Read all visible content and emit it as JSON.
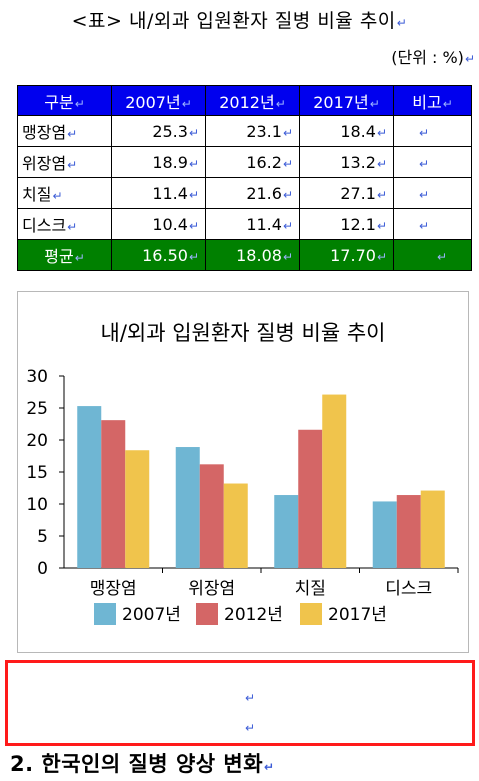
{
  "caption": "<표> 내/외과 입원환자 질병 비율 추이",
  "unit_note": "(단위 : %)",
  "paragraph_mark": "↵",
  "table": {
    "headers": [
      "구분",
      "2007년",
      "2012년",
      "2017년",
      "비고"
    ],
    "rows": [
      {
        "label": "맹장염",
        "values": [
          "25.3",
          "23.1",
          "18.4"
        ],
        "note": ""
      },
      {
        "label": "위장염",
        "values": [
          "18.9",
          "16.2",
          "13.2"
        ],
        "note": ""
      },
      {
        "label": "치질",
        "values": [
          "11.4",
          "21.6",
          "27.1"
        ],
        "note": ""
      },
      {
        "label": "디스크",
        "values": [
          "10.4",
          "11.4",
          "12.1"
        ],
        "note": ""
      }
    ],
    "footer": {
      "label": "평균",
      "values": [
        "16.50",
        "18.08",
        "17.70"
      ],
      "note": ""
    },
    "header_color": "#0000ee",
    "footer_color": "#008000"
  },
  "chart_data": {
    "type": "bar",
    "title": "내/외과 입원환자 질병 비율 추이",
    "categories": [
      "맹장염",
      "위장염",
      "치질",
      "디스크"
    ],
    "series": [
      {
        "name": "2007년",
        "values": [
          25.3,
          18.9,
          11.4,
          10.4
        ],
        "color": "#6fb6d3"
      },
      {
        "name": "2012년",
        "values": [
          23.1,
          16.2,
          21.6,
          11.4
        ],
        "color": "#d46666"
      },
      {
        "name": "2017년",
        "values": [
          18.4,
          13.2,
          27.1,
          12.1
        ],
        "color": "#f0c44c"
      }
    ],
    "ylim": [
      0,
      30
    ],
    "yticks": [
      0,
      5,
      10,
      15,
      20,
      25,
      30
    ],
    "grid": false,
    "legend_position": "bottom"
  },
  "section_heading": "2. 한국인의 질병 양상 변화"
}
